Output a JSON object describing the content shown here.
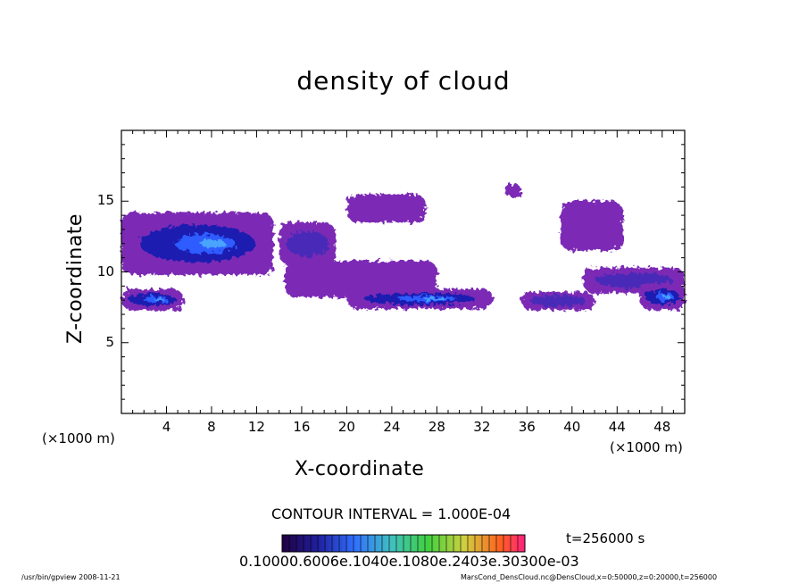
{
  "chart_data": {
    "type": "heatmap",
    "title": "density of cloud",
    "xlabel": "X-coordinate",
    "ylabel": "Z-coordinate",
    "x_unit_left": "(×1000 m)",
    "x_unit_right": "(×1000 m)",
    "xlim": [
      0,
      50
    ],
    "ylim": [
      0,
      20
    ],
    "x_ticks": [
      "4",
      "8",
      "12",
      "16",
      "20",
      "24",
      "28",
      "32",
      "36",
      "40",
      "44",
      "48"
    ],
    "y_ticks": [
      "5",
      "10",
      "15"
    ],
    "contour_interval": "CONTOUR INTERVAL = 1.000E-04",
    "time_label": "t=256000 s",
    "colorbar_labels": "0.10000.6006e.1040e.1080e.2403e.30300e-03",
    "colors": {
      "purple": "#7c2bb5",
      "dark_blue": "#1a1ab0",
      "blue": "#2f5cff",
      "bright_blue": "#4aa3ff"
    },
    "cloud_regions": [
      {
        "x": [
          0,
          13.5
        ],
        "z": [
          9.8,
          14.2
        ],
        "level": "high"
      },
      {
        "x": [
          0,
          5.5
        ],
        "z": [
          7.3,
          8.8
        ],
        "level": "high"
      },
      {
        "x": [
          14,
          19
        ],
        "z": [
          10.5,
          13.5
        ],
        "level": "medium"
      },
      {
        "x": [
          14.5,
          28
        ],
        "z": [
          8.2,
          10.8
        ],
        "level": "low"
      },
      {
        "x": [
          20,
          33
        ],
        "z": [
          7.4,
          8.8
        ],
        "level": "high"
      },
      {
        "x": [
          20,
          27
        ],
        "z": [
          13.5,
          15.5
        ],
        "level": "low"
      },
      {
        "x": [
          34,
          35.5
        ],
        "z": [
          15.3,
          16.2
        ],
        "level": "low"
      },
      {
        "x": [
          35.5,
          42
        ],
        "z": [
          7.3,
          8.6
        ],
        "level": "medium"
      },
      {
        "x": [
          39,
          44.5
        ],
        "z": [
          11.5,
          15
        ],
        "level": "low"
      },
      {
        "x": [
          41,
          50
        ],
        "z": [
          8.5,
          10.3
        ],
        "level": "medium"
      },
      {
        "x": [
          46,
          50
        ],
        "z": [
          7.3,
          9.2
        ],
        "level": "high"
      }
    ]
  },
  "footer": {
    "left": "/usr/bin/gpview   2008-11-21",
    "right": "MarsCond_DensCloud.nc@DensCloud,x=0:50000,z=0:20000,t=256000"
  }
}
